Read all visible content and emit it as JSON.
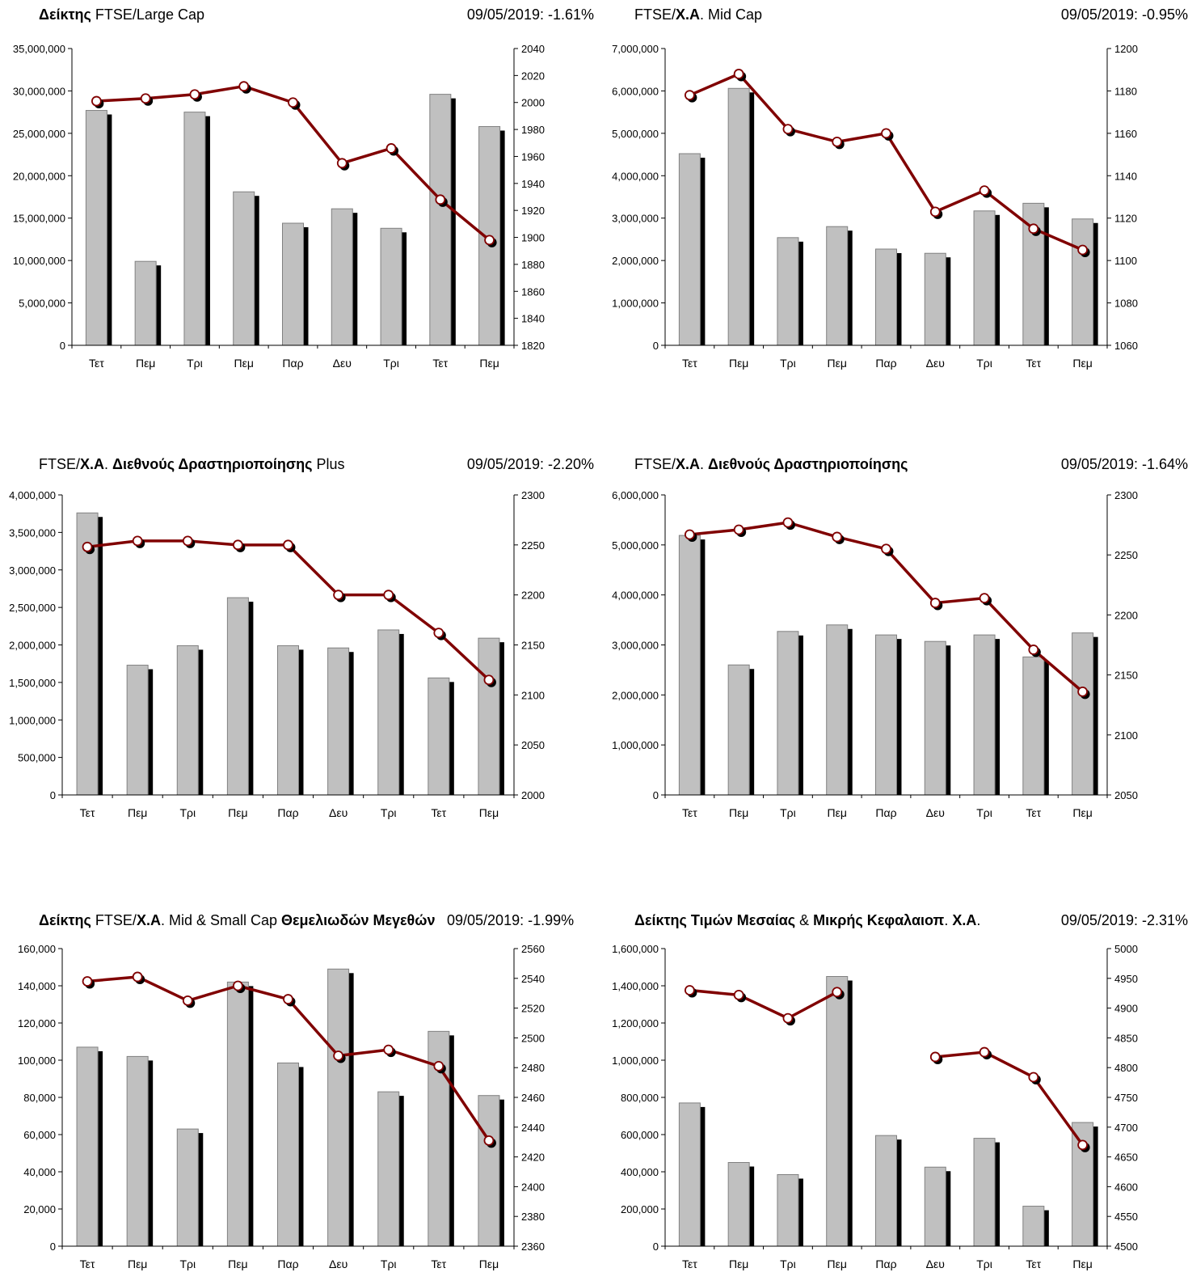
{
  "panels": [
    {
      "title_parts": [
        {
          "t": "Δείκτης",
          "b": true
        },
        {
          "t": " FTSE/Large Cap",
          "b": false
        }
      ],
      "stat": "09/05/2019: -1.61%"
    },
    {
      "title_parts": [
        {
          "t": "FTSE/",
          "b": false
        },
        {
          "t": "Χ.Α",
          "b": true
        },
        {
          "t": ". Mid Cap",
          "b": false
        }
      ],
      "stat": "09/05/2019: -0.95%"
    },
    {
      "title_parts": [
        {
          "t": "FTSE/",
          "b": false
        },
        {
          "t": "Χ.Α",
          "b": true
        },
        {
          "t": ". ",
          "b": false
        },
        {
          "t": "Διεθνούς Δραστηριοποίησης",
          "b": true
        },
        {
          "t": " Plus",
          "b": false
        }
      ],
      "stat": "09/05/2019: -2.20%"
    },
    {
      "title_parts": [
        {
          "t": "FTSE/",
          "b": false
        },
        {
          "t": "Χ.Α",
          "b": true
        },
        {
          "t": ". ",
          "b": false
        },
        {
          "t": "Διεθνούς Δραστηριοποίησης",
          "b": true
        }
      ],
      "stat": "09/05/2019: -1.64%"
    },
    {
      "title_parts": [
        {
          "t": "Δείκτης",
          "b": true
        },
        {
          "t": " FTSE/",
          "b": false
        },
        {
          "t": "Χ.Α",
          "b": true
        },
        {
          "t": ". Mid & Small Cap ",
          "b": false
        },
        {
          "t": "Θεμελιωδών Μεγεθών",
          "b": true
        }
      ],
      "stat": "09/05/2019: -1.99%"
    },
    {
      "title_parts": [
        {
          "t": "Δείκτης Τιμών Μεσαίας",
          "b": true
        },
        {
          "t": " & ",
          "b": false
        },
        {
          "t": "Μικρής Κεφαλαιοπ",
          "b": true
        },
        {
          "t": ".  ",
          "b": false
        },
        {
          "t": "Χ.Α",
          "b": true
        },
        {
          "t": ".",
          "b": false
        }
      ],
      "stat": "09/05/2019: -2.31%"
    }
  ],
  "chart_data": [
    {
      "type": "bar+line",
      "categories": [
        "Τετ",
        "Πεμ",
        "Τρι",
        "Πεμ",
        "Παρ",
        "Δευ",
        "Τρι",
        "Τετ",
        "Πεμ"
      ],
      "bar_values": [
        27700000,
        9900000,
        27500000,
        18100000,
        14400000,
        16100000,
        13800000,
        29600000,
        25800000
      ],
      "line_values": [
        2001,
        2003,
        2006,
        2012,
        2000,
        1955,
        1966,
        1928,
        1898
      ],
      "left_axis": {
        "min": 0,
        "max": 35000000,
        "ticks": [
          "0",
          "5,000,000",
          "10,000,000",
          "15,000,000",
          "20,000,000",
          "25,000,000",
          "30,000,000",
          "35,000,000"
        ]
      },
      "right_axis": {
        "min": 1820,
        "max": 2040,
        "ticks": [
          "1820",
          "1840",
          "1860",
          "1880",
          "1900",
          "1920",
          "1940",
          "1960",
          "1980",
          "2000",
          "2020",
          "2040"
        ]
      },
      "colors": {
        "bar": "#c0c0c0",
        "bar_shadow": "#000000",
        "line": "#800000",
        "marker": "#ffffff"
      }
    },
    {
      "type": "bar+line",
      "categories": [
        "Τετ",
        "Πεμ",
        "Τρι",
        "Πεμ",
        "Παρ",
        "Δευ",
        "Τρι",
        "Τετ",
        "Πεμ"
      ],
      "bar_values": [
        4520000,
        6060000,
        2540000,
        2800000,
        2270000,
        2170000,
        3170000,
        3350000,
        2980000
      ],
      "line_values": [
        1178,
        1188,
        1162,
        1156,
        1160,
        1123,
        1133,
        1115,
        1105
      ],
      "left_axis": {
        "min": 0,
        "max": 7000000,
        "ticks": [
          "0",
          "1,000,000",
          "2,000,000",
          "3,000,000",
          "4,000,000",
          "5,000,000",
          "6,000,000",
          "7,000,000"
        ]
      },
      "right_axis": {
        "min": 1060,
        "max": 1200,
        "ticks": [
          "1060",
          "1080",
          "1100",
          "1120",
          "1140",
          "1160",
          "1180",
          "1200"
        ]
      },
      "colors": {
        "bar": "#c0c0c0",
        "bar_shadow": "#000000",
        "line": "#800000",
        "marker": "#ffffff"
      }
    },
    {
      "type": "bar+line",
      "categories": [
        "Τετ",
        "Πεμ",
        "Τρι",
        "Πεμ",
        "Παρ",
        "Δευ",
        "Τρι",
        "Τετ",
        "Πεμ"
      ],
      "bar_values": [
        3760000,
        1730000,
        1990000,
        2630000,
        1990000,
        1960000,
        2200000,
        1560000,
        2090000
      ],
      "line_values": [
        2248,
        2254,
        2254,
        2250,
        2250,
        2200,
        2200,
        2162,
        2115
      ],
      "left_axis": {
        "min": 0,
        "max": 4000000,
        "ticks": [
          "0",
          "500,000",
          "1,000,000",
          "1,500,000",
          "2,000,000",
          "2,500,000",
          "3,000,000",
          "3,500,000",
          "4,000,000"
        ]
      },
      "right_axis": {
        "min": 2000,
        "max": 2300,
        "ticks": [
          "2000",
          "2050",
          "2100",
          "2150",
          "2200",
          "2250",
          "2300"
        ]
      },
      "colors": {
        "bar": "#c0c0c0",
        "bar_shadow": "#000000",
        "line": "#800000",
        "marker": "#ffffff"
      }
    },
    {
      "type": "bar+line",
      "categories": [
        "Τετ",
        "Πεμ",
        "Τρι",
        "Πεμ",
        "Παρ",
        "Δευ",
        "Τρι",
        "Τετ",
        "Πεμ"
      ],
      "bar_values": [
        5190000,
        2600000,
        3270000,
        3400000,
        3200000,
        3070000,
        3200000,
        2760000,
        3240000
      ],
      "line_values": [
        2267,
        2271,
        2277,
        2265,
        2255,
        2210,
        2214,
        2171,
        2136
      ],
      "left_axis": {
        "min": 0,
        "max": 6000000,
        "ticks": [
          "0",
          "1,000,000",
          "2,000,000",
          "3,000,000",
          "4,000,000",
          "5,000,000",
          "6,000,000"
        ]
      },
      "right_axis": {
        "min": 2050,
        "max": 2300,
        "ticks": [
          "2050",
          "2100",
          "2150",
          "2200",
          "2250",
          "2300"
        ]
      },
      "colors": {
        "bar": "#c0c0c0",
        "bar_shadow": "#000000",
        "line": "#800000",
        "marker": "#ffffff"
      }
    },
    {
      "type": "bar+line",
      "categories": [
        "Τετ",
        "Πεμ",
        "Τρι",
        "Πεμ",
        "Παρ",
        "Δευ",
        "Τρι",
        "Τετ",
        "Πεμ"
      ],
      "bar_values": [
        107000,
        102000,
        63000,
        142000,
        98500,
        149000,
        83000,
        115500,
        81000
      ],
      "line_values": [
        2538,
        2541,
        2525,
        2535,
        2526,
        2488,
        2492,
        2481,
        2431
      ],
      "left_axis": {
        "min": 0,
        "max": 160000,
        "ticks": [
          "0",
          "20,000",
          "40,000",
          "60,000",
          "80,000",
          "100,000",
          "120,000",
          "140,000",
          "160,000"
        ]
      },
      "right_axis": {
        "min": 2360,
        "max": 2560,
        "ticks": [
          "2360",
          "2380",
          "2400",
          "2420",
          "2440",
          "2460",
          "2480",
          "2500",
          "2520",
          "2540",
          "2560"
        ]
      },
      "colors": {
        "bar": "#c0c0c0",
        "bar_shadow": "#000000",
        "line": "#800000",
        "marker": "#ffffff"
      }
    },
    {
      "type": "bar+line",
      "categories": [
        "Τετ",
        "Πεμ",
        "Τρι",
        "Πεμ",
        "Παρ",
        "Δευ",
        "Τρι",
        "Τετ",
        "Πεμ"
      ],
      "bar_values": [
        770000,
        450000,
        385000,
        1450000,
        595000,
        425000,
        580000,
        215000,
        665000
      ],
      "line_values": [
        4930,
        4922,
        4883,
        4927,
        null,
        4818,
        4826,
        4784,
        4670
      ],
      "left_axis": {
        "min": 0,
        "max": 1600000,
        "ticks": [
          "0",
          "200,000",
          "400,000",
          "600,000",
          "800,000",
          "1,000,000",
          "1,200,000",
          "1,400,000",
          "1,600,000"
        ]
      },
      "right_axis": {
        "min": 4500,
        "max": 5000,
        "ticks": [
          "4500",
          "4550",
          "4600",
          "4650",
          "4700",
          "4750",
          "4800",
          "4850",
          "4900",
          "4950",
          "5000"
        ]
      },
      "colors": {
        "bar": "#c0c0c0",
        "bar_shadow": "#000000",
        "line": "#800000",
        "marker": "#ffffff"
      }
    }
  ]
}
